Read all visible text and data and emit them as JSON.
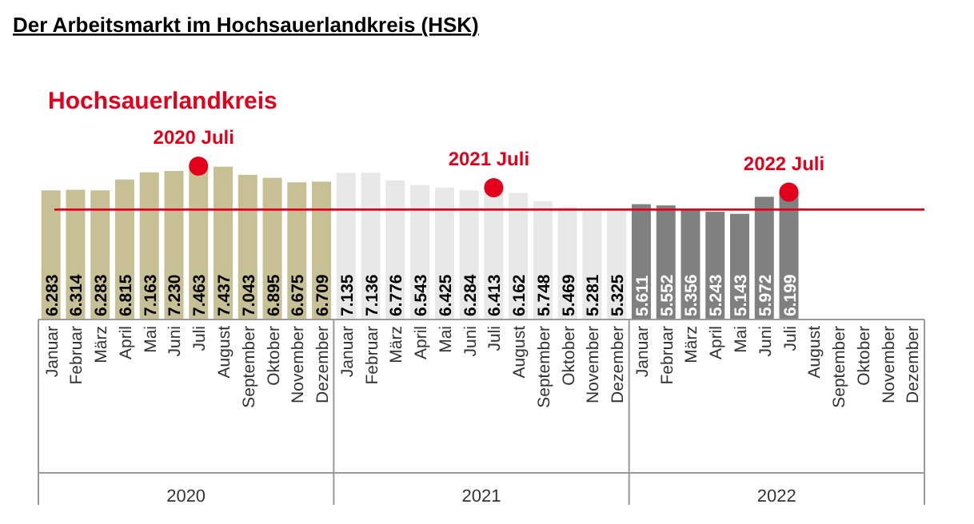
{
  "chart_data": {
    "type": "bar",
    "title": "Der Arbeitsmarkt im Hochsauerlandkreis (HSK)",
    "subtitle": "Hochsauerlandkreis",
    "categories": [
      "Januar",
      "Februar",
      "März",
      "April",
      "Mai",
      "Juni",
      "Juli",
      "August",
      "September",
      "Oktober",
      "November",
      "Dezember",
      "Januar",
      "Februar",
      "März",
      "April",
      "Mai",
      "Juni",
      "Juli",
      "August",
      "September",
      "Oktober",
      "November",
      "Dezember",
      "Januar",
      "Februar",
      "März",
      "April",
      "Mai",
      "Juni",
      "Juli",
      "August",
      "September",
      "Oktober",
      "November",
      "Dezember"
    ],
    "series": [
      {
        "values": [
          6283,
          6314,
          6283,
          6815,
          7163,
          7230,
          7463,
          7437,
          7043,
          6895,
          6675,
          6709,
          7135,
          7136,
          6776,
          6543,
          6425,
          6284,
          6413,
          6162,
          5748,
          5469,
          5281,
          5325,
          5611,
          5552,
          5356,
          5243,
          5143,
          5972,
          6199,
          null,
          null,
          null,
          null,
          null
        ],
        "value_labels": [
          "6.283",
          "6.314",
          "6.283",
          "6.815",
          "7.163",
          "7.230",
          "7.463",
          "7.437",
          "7.043",
          "6.895",
          "6.675",
          "6.709",
          "7.135",
          "7.136",
          "6.776",
          "6.543",
          "6.425",
          "6.284",
          "6.413",
          "6.162",
          "5.748",
          "5.469",
          "5.281",
          "5.325",
          "5.611",
          "5.552",
          "5.356",
          "5.243",
          "5.143",
          "5.972",
          "6.199",
          null,
          null,
          null,
          null,
          null
        ],
        "colors": [
          "#c8c095",
          "#c8c095",
          "#c8c095",
          "#c8c095",
          "#c8c095",
          "#c8c095",
          "#c8c095",
          "#c8c095",
          "#c8c095",
          "#c8c095",
          "#c8c095",
          "#c8c095",
          "#e8e8e8",
          "#e8e8e8",
          "#e8e8e8",
          "#e8e8e8",
          "#e8e8e8",
          "#e8e8e8",
          "#e8e8e8",
          "#e8e8e8",
          "#e8e8e8",
          "#e8e8e8",
          "#e8e8e8",
          "#e8e8e8",
          "#808080",
          "#808080",
          "#808080",
          "#808080",
          "#808080",
          "#808080",
          "#808080",
          null,
          null,
          null,
          null,
          null
        ]
      },
      {
        "type": "scatter",
        "color": "#e2001a",
        "values": [
          null,
          null,
          null,
          null,
          null,
          null,
          7463,
          null,
          null,
          null,
          null,
          null,
          null,
          null,
          null,
          null,
          null,
          null,
          6413,
          null,
          null,
          null,
          null,
          null,
          null,
          null,
          null,
          null,
          null,
          null,
          6199,
          null,
          null,
          null,
          null,
          null
        ]
      }
    ],
    "marker": "circle",
    "ref_lines": [
      {
        "axis": "y",
        "value": 5350,
        "color": "#e2001a"
      }
    ],
    "annotations": [
      "2020 Juli",
      "2021 Juli",
      "2022 Juli",
      "2020",
      "2021",
      "2022"
    ]
  }
}
